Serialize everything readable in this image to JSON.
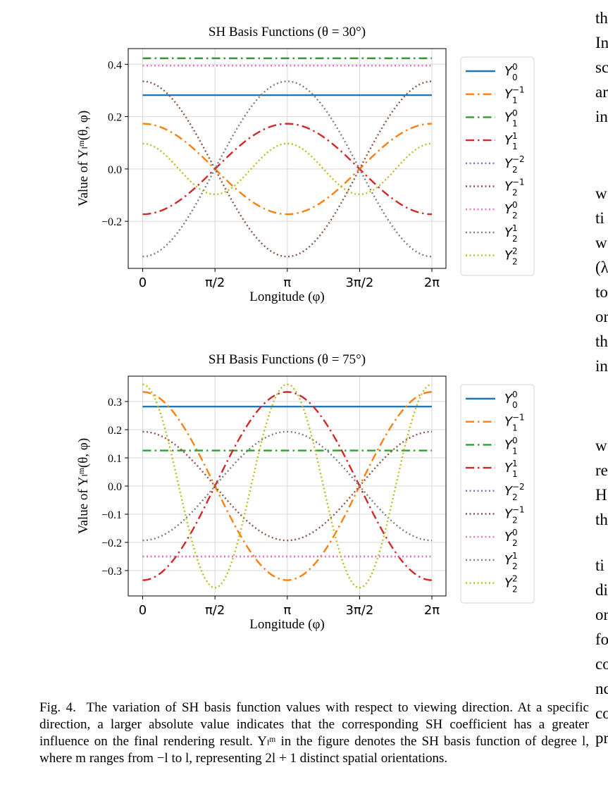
{
  "figure": {
    "caption_label": "Fig. 4.",
    "caption_text": "The variation of SH basis function values with respect to viewing direction. At a specific direction, a larger absolute value indicates that the corresponding SH coefficient has a greater influence on the final rendering result. Yₗᵐ in the figure denotes the SH basis function of degree l, where m ranges from −l to l, representing 2l + 1 distinct spatial orientations."
  },
  "right_column_fragments": [
    "th",
    "In",
    "sc",
    "ar",
    "in",
    "w",
    "ti",
    "w",
    "(λ",
    "to",
    "or",
    "th",
    "in",
    "w",
    "re",
    "H",
    "th",
    "ti",
    "di",
    "or",
    "fo",
    "co",
    "nc",
    "co",
    "pr"
  ],
  "legend_entries": [
    {
      "base": "Y",
      "sub": "0",
      "sup": "0",
      "color": "#1f77b4",
      "dash": "solid"
    },
    {
      "base": "Y",
      "sub": "1",
      "sup": "−1",
      "color": "#ff7f0e",
      "dash": "dashdot"
    },
    {
      "base": "Y",
      "sub": "1",
      "sup": "0",
      "color": "#2ca02c",
      "dash": "dashdot"
    },
    {
      "base": "Y",
      "sub": "1",
      "sup": "1",
      "color": "#d62728",
      "dash": "dashdot"
    },
    {
      "base": "Y",
      "sub": "2",
      "sup": "−2",
      "color": "#9467bd",
      "dash": "dotted"
    },
    {
      "base": "Y",
      "sub": "2",
      "sup": "−1",
      "color": "#8c564b",
      "dash": "dotted"
    },
    {
      "base": "Y",
      "sub": "2",
      "sup": "0",
      "color": "#e377c2",
      "dash": "dotted"
    },
    {
      "base": "Y",
      "sub": "2",
      "sup": "1",
      "color": "#7f7f7f",
      "dash": "dotted"
    },
    {
      "base": "Y",
      "sub": "2",
      "sup": "2",
      "color": "#bcbd22",
      "dash": "dotted"
    }
  ],
  "chart_data": [
    {
      "type": "line",
      "title": "SH Basis Functions (θ = 30°)",
      "xlabel": "Longitude (φ)",
      "ylabel": "Value of Yₗᵐ(θ, φ)",
      "x_range": [
        0,
        6.2832
      ],
      "x_ticks": [
        "0",
        "π/2",
        "π",
        "3π/2",
        "2π"
      ],
      "ylim": [
        -0.38,
        0.46
      ],
      "y_ticks": [
        "0.4",
        "0.2",
        "0.0",
        "−0.2"
      ],
      "y_tick_values": [
        0.4,
        0.2,
        0.0,
        -0.2
      ],
      "grid": true,
      "legend_position": "right",
      "series": [
        {
          "name": "Y_0^0",
          "formula": "const",
          "a": 0.282
        },
        {
          "name": "Y_1^-1",
          "formula": "cos",
          "a": 0.173
        },
        {
          "name": "Y_1^0",
          "formula": "const",
          "a": 0.423
        },
        {
          "name": "Y_1^1",
          "formula": "cos",
          "a": -0.173
        },
        {
          "name": "Y_2^-2",
          "formula": "const",
          "a": 0.395
        },
        {
          "name": "Y_2^-1",
          "formula": "cos",
          "a": 0.335
        },
        {
          "name": "Y_2^0",
          "formula": "const",
          "a": 0.395
        },
        {
          "name": "Y_2^1",
          "formula": "cos",
          "a": -0.335
        },
        {
          "name": "Y_2^2",
          "formula": "cos2",
          "a": 0.097
        }
      ]
    },
    {
      "type": "line",
      "title": "SH Basis Functions (θ = 75°)",
      "xlabel": "Longitude (φ)",
      "ylabel": "Value of Yₗᵐ(θ, φ)",
      "x_range": [
        0,
        6.2832
      ],
      "x_ticks": [
        "0",
        "π/2",
        "π",
        "3π/2",
        "2π"
      ],
      "ylim": [
        -0.39,
        0.39
      ],
      "y_ticks": [
        "0.3",
        "0.2",
        "0.1",
        "0.0",
        "−0.1",
        "−0.2",
        "−0.3"
      ],
      "y_tick_values": [
        0.3,
        0.2,
        0.1,
        0.0,
        -0.1,
        -0.2,
        -0.3
      ],
      "grid": true,
      "legend_position": "right",
      "series": [
        {
          "name": "Y_0^0",
          "formula": "const",
          "a": 0.282
        },
        {
          "name": "Y_1^-1",
          "formula": "cos",
          "a": 0.334
        },
        {
          "name": "Y_1^0",
          "formula": "const",
          "a": 0.126
        },
        {
          "name": "Y_1^1",
          "formula": "cos",
          "a": -0.334
        },
        {
          "name": "Y_2^-2",
          "formula": "const",
          "a": -0.25
        },
        {
          "name": "Y_2^-1",
          "formula": "cos",
          "a": 0.193
        },
        {
          "name": "Y_2^0",
          "formula": "const",
          "a": -0.25
        },
        {
          "name": "Y_2^1",
          "formula": "cos",
          "a": -0.193
        },
        {
          "name": "Y_2^2",
          "formula": "cos2",
          "a": 0.361
        }
      ]
    }
  ]
}
